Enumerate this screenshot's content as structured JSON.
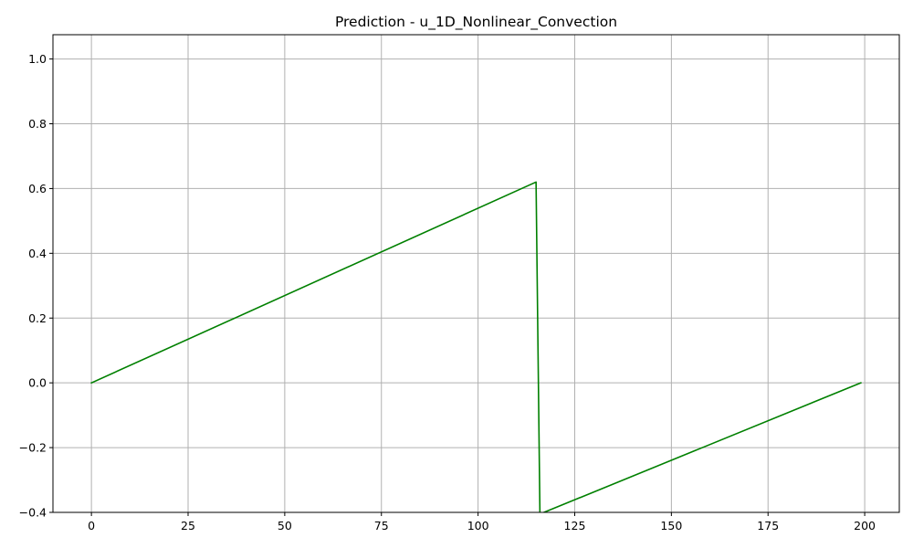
{
  "chart_data": {
    "type": "line",
    "title": "Prediction - u_1D_Nonlinear_Convection",
    "xlabel": "",
    "ylabel": "",
    "xlim": [
      -9.95,
      208.95
    ],
    "ylim": [
      -0.4,
      1.075
    ],
    "grid": true,
    "x_ticks": [
      0,
      25,
      50,
      75,
      100,
      125,
      150,
      175,
      200
    ],
    "x_tick_labels": [
      "0",
      "25",
      "50",
      "75",
      "100",
      "125",
      "150",
      "175",
      "200"
    ],
    "y_ticks": [
      -0.4,
      -0.2,
      0.0,
      0.2,
      0.4,
      0.6,
      0.8,
      1.0
    ],
    "y_tick_labels": [
      "−0.4",
      "−0.2",
      "0.0",
      "0.2",
      "0.4",
      "0.6",
      "0.8",
      "1.0"
    ],
    "series": [
      {
        "color": "#008000",
        "x": [
          0,
          115,
          116,
          199
        ],
        "y": [
          0.0,
          0.62,
          -0.405,
          0.0
        ]
      }
    ]
  }
}
